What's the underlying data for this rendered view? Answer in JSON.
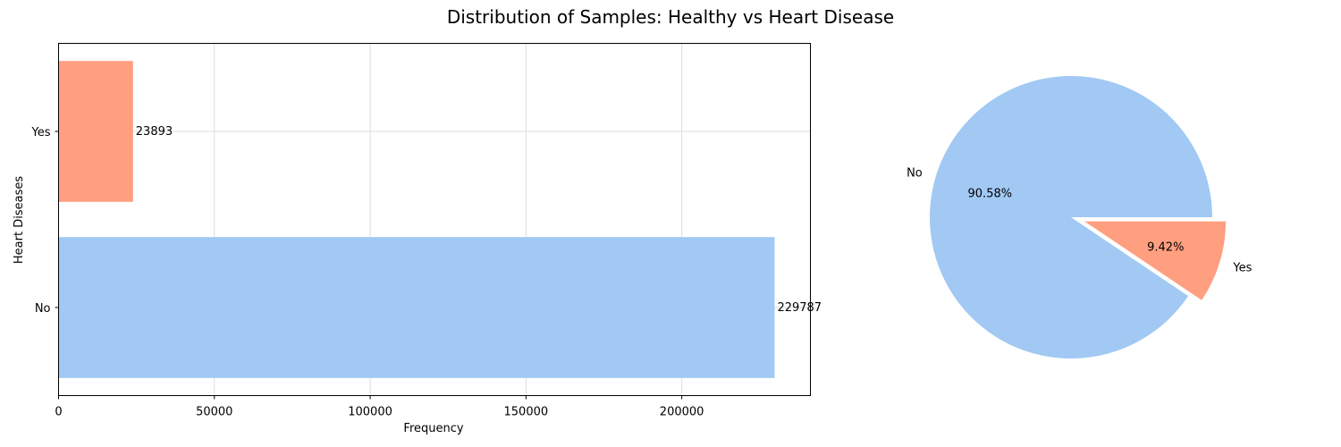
{
  "title": "Distribution of Samples: Healthy vs Heart Disease",
  "colors": {
    "no": "#a1c9f4",
    "yes": "#ff9f80",
    "grid": "#dddddd",
    "axis": "#000000"
  },
  "chart_data": [
    {
      "type": "bar",
      "orientation": "horizontal",
      "categories": [
        "No",
        "Yes"
      ],
      "values": [
        229787,
        23893
      ],
      "data_labels": [
        "229787",
        "23893"
      ],
      "xlabel": "Frequency",
      "ylabel": "Heart Diseases",
      "xlim": [
        0,
        241276
      ],
      "xticks": [
        0,
        50000,
        100000,
        150000,
        200000
      ],
      "xtick_labels": [
        "0",
        "50000",
        "100000",
        "150000",
        "200000"
      ],
      "grid": true,
      "bar_colors": [
        "#a1c9f4",
        "#ff9f80"
      ]
    },
    {
      "type": "pie",
      "labels": [
        "No",
        "Yes"
      ],
      "values": [
        229787,
        23893
      ],
      "percent_labels": [
        "90.58%",
        "9.42%"
      ],
      "colors": [
        "#a1c9f4",
        "#ff9f80"
      ],
      "explode": [
        0,
        0.1
      ]
    }
  ]
}
